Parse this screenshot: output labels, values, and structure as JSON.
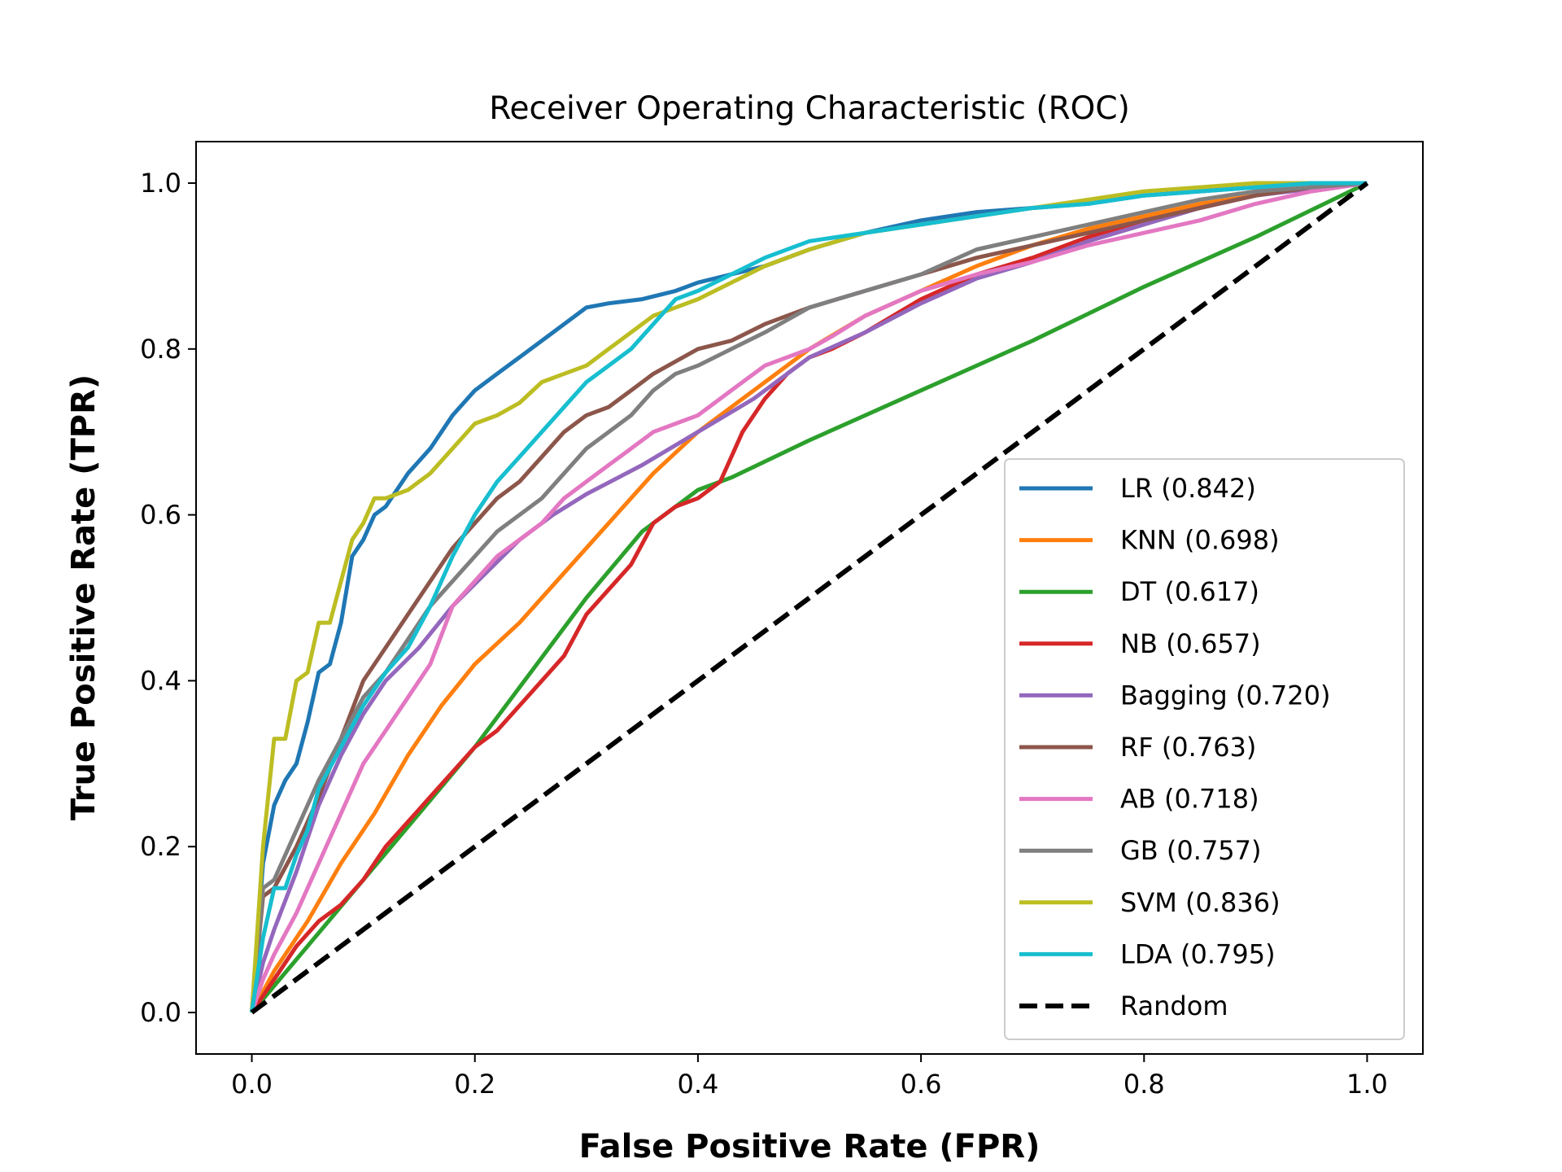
{
  "chart_data": {
    "type": "line",
    "title": "Receiver Operating Characteristic (ROC)",
    "xlabel": "False Positive Rate (FPR)",
    "ylabel": "True Positive Rate (TPR)",
    "xlim": [
      -0.05,
      1.05
    ],
    "ylim": [
      -0.05,
      1.05
    ],
    "xticks": [
      "0.0",
      "0.2",
      "0.4",
      "0.6",
      "0.8",
      "1.0"
    ],
    "yticks": [
      "0.0",
      "0.2",
      "0.4",
      "0.6",
      "0.8",
      "1.0"
    ],
    "grid": false,
    "legend_position": "lower-right",
    "series": [
      {
        "name": "LR (0.842)",
        "color": "#1f77b4",
        "x": [
          0,
          0.01,
          0.02,
          0.03,
          0.04,
          0.05,
          0.06,
          0.07,
          0.08,
          0.09,
          0.1,
          0.11,
          0.12,
          0.14,
          0.16,
          0.18,
          0.2,
          0.22,
          0.24,
          0.26,
          0.28,
          0.3,
          0.32,
          0.35,
          0.38,
          0.4,
          0.43,
          0.46,
          0.5,
          0.55,
          0.6,
          0.65,
          0.7,
          0.75,
          0.8,
          0.85,
          0.9,
          0.95,
          1.0
        ],
        "y": [
          0,
          0.18,
          0.25,
          0.28,
          0.3,
          0.35,
          0.41,
          0.42,
          0.47,
          0.55,
          0.57,
          0.6,
          0.61,
          0.65,
          0.68,
          0.72,
          0.75,
          0.77,
          0.79,
          0.81,
          0.83,
          0.85,
          0.855,
          0.86,
          0.87,
          0.88,
          0.89,
          0.9,
          0.92,
          0.94,
          0.955,
          0.965,
          0.97,
          0.975,
          0.985,
          0.99,
          0.995,
          1.0,
          1.0
        ]
      },
      {
        "name": "KNN (0.698)",
        "color": "#ff7f0e",
        "x": [
          0,
          0.02,
          0.05,
          0.08,
          0.11,
          0.14,
          0.17,
          0.2,
          0.24,
          0.28,
          0.32,
          0.36,
          0.4,
          0.45,
          0.5,
          0.55,
          0.6,
          0.65,
          0.7,
          0.75,
          0.8,
          0.85,
          0.9,
          0.95,
          1.0
        ],
        "y": [
          0,
          0.05,
          0.11,
          0.18,
          0.24,
          0.31,
          0.37,
          0.42,
          0.47,
          0.53,
          0.59,
          0.65,
          0.7,
          0.75,
          0.8,
          0.84,
          0.87,
          0.9,
          0.925,
          0.945,
          0.96,
          0.975,
          0.985,
          0.995,
          1.0
        ]
      },
      {
        "name": "DT (0.617)",
        "color": "#2ca02c",
        "x": [
          0,
          0.05,
          0.1,
          0.15,
          0.2,
          0.25,
          0.3,
          0.35,
          0.4,
          0.43,
          0.5,
          0.6,
          0.7,
          0.8,
          0.9,
          1.0
        ],
        "y": [
          0,
          0.08,
          0.16,
          0.24,
          0.32,
          0.41,
          0.5,
          0.58,
          0.63,
          0.645,
          0.69,
          0.75,
          0.81,
          0.875,
          0.935,
          1.0
        ]
      },
      {
        "name": "NB (0.657)",
        "color": "#d62728",
        "x": [
          0,
          0.02,
          0.04,
          0.06,
          0.08,
          0.1,
          0.12,
          0.14,
          0.16,
          0.18,
          0.2,
          0.22,
          0.24,
          0.26,
          0.28,
          0.3,
          0.32,
          0.34,
          0.36,
          0.38,
          0.4,
          0.42,
          0.44,
          0.46,
          0.48,
          0.5,
          0.52,
          0.55,
          0.6,
          0.65,
          0.7,
          0.75,
          0.8,
          0.85,
          0.9,
          0.95,
          1.0
        ],
        "y": [
          0,
          0.04,
          0.08,
          0.11,
          0.13,
          0.16,
          0.2,
          0.23,
          0.26,
          0.29,
          0.32,
          0.34,
          0.37,
          0.4,
          0.43,
          0.48,
          0.51,
          0.54,
          0.59,
          0.61,
          0.62,
          0.64,
          0.7,
          0.74,
          0.77,
          0.79,
          0.8,
          0.82,
          0.86,
          0.89,
          0.91,
          0.935,
          0.955,
          0.97,
          0.985,
          0.995,
          1.0
        ]
      },
      {
        "name": "Bagging (0.720)",
        "color": "#9467bd",
        "x": [
          0,
          0.01,
          0.02,
          0.04,
          0.06,
          0.08,
          0.1,
          0.12,
          0.15,
          0.18,
          0.21,
          0.24,
          0.27,
          0.3,
          0.35,
          0.4,
          0.45,
          0.5,
          0.55,
          0.6,
          0.65,
          0.7,
          0.75,
          0.8,
          0.85,
          0.9,
          0.95,
          1.0
        ],
        "y": [
          0,
          0.06,
          0.1,
          0.17,
          0.25,
          0.31,
          0.36,
          0.4,
          0.44,
          0.49,
          0.53,
          0.57,
          0.6,
          0.625,
          0.66,
          0.7,
          0.74,
          0.79,
          0.82,
          0.855,
          0.885,
          0.905,
          0.93,
          0.95,
          0.97,
          0.985,
          0.993,
          1.0
        ]
      },
      {
        "name": "RF (0.763)",
        "color": "#8c564b",
        "x": [
          0,
          0.01,
          0.02,
          0.04,
          0.06,
          0.08,
          0.1,
          0.12,
          0.14,
          0.16,
          0.18,
          0.2,
          0.22,
          0.24,
          0.26,
          0.28,
          0.3,
          0.32,
          0.34,
          0.36,
          0.38,
          0.4,
          0.43,
          0.46,
          0.5,
          0.55,
          0.6,
          0.65,
          0.7,
          0.75,
          0.8,
          0.85,
          0.9,
          0.95,
          1.0
        ],
        "y": [
          0,
          0.14,
          0.15,
          0.2,
          0.26,
          0.33,
          0.4,
          0.44,
          0.48,
          0.52,
          0.56,
          0.59,
          0.62,
          0.64,
          0.67,
          0.7,
          0.72,
          0.73,
          0.75,
          0.77,
          0.785,
          0.8,
          0.81,
          0.83,
          0.85,
          0.87,
          0.89,
          0.91,
          0.925,
          0.94,
          0.955,
          0.97,
          0.985,
          0.995,
          1.0
        ]
      },
      {
        "name": "AB (0.718)",
        "color": "#e377c2",
        "x": [
          0,
          0.01,
          0.02,
          0.04,
          0.06,
          0.08,
          0.1,
          0.12,
          0.14,
          0.16,
          0.18,
          0.2,
          0.22,
          0.24,
          0.26,
          0.28,
          0.3,
          0.32,
          0.34,
          0.36,
          0.38,
          0.4,
          0.42,
          0.44,
          0.46,
          0.48,
          0.5,
          0.52,
          0.55,
          0.6,
          0.65,
          0.7,
          0.75,
          0.8,
          0.85,
          0.9,
          0.95,
          1.0
        ],
        "y": [
          0,
          0.04,
          0.07,
          0.12,
          0.18,
          0.24,
          0.3,
          0.34,
          0.38,
          0.42,
          0.49,
          0.52,
          0.55,
          0.57,
          0.59,
          0.62,
          0.64,
          0.66,
          0.68,
          0.7,
          0.71,
          0.72,
          0.74,
          0.76,
          0.78,
          0.79,
          0.8,
          0.815,
          0.84,
          0.87,
          0.89,
          0.905,
          0.925,
          0.94,
          0.955,
          0.975,
          0.99,
          1.0
        ]
      },
      {
        "name": "GB (0.757)",
        "color": "#7f7f7f",
        "x": [
          0,
          0.01,
          0.02,
          0.04,
          0.06,
          0.08,
          0.1,
          0.12,
          0.14,
          0.16,
          0.18,
          0.2,
          0.22,
          0.24,
          0.26,
          0.28,
          0.3,
          0.32,
          0.34,
          0.36,
          0.38,
          0.4,
          0.43,
          0.46,
          0.5,
          0.55,
          0.6,
          0.65,
          0.7,
          0.75,
          0.8,
          0.85,
          0.9,
          0.95,
          1.0
        ],
        "y": [
          0,
          0.15,
          0.16,
          0.22,
          0.28,
          0.33,
          0.38,
          0.41,
          0.45,
          0.49,
          0.52,
          0.55,
          0.58,
          0.6,
          0.62,
          0.65,
          0.68,
          0.7,
          0.72,
          0.75,
          0.77,
          0.78,
          0.8,
          0.82,
          0.85,
          0.87,
          0.89,
          0.92,
          0.935,
          0.95,
          0.965,
          0.98,
          0.99,
          0.995,
          1.0
        ]
      },
      {
        "name": "SVM (0.836)",
        "color": "#bcbd22",
        "x": [
          0,
          0.01,
          0.02,
          0.03,
          0.04,
          0.05,
          0.06,
          0.07,
          0.08,
          0.09,
          0.1,
          0.11,
          0.12,
          0.14,
          0.16,
          0.18,
          0.2,
          0.22,
          0.24,
          0.26,
          0.28,
          0.3,
          0.32,
          0.34,
          0.36,
          0.38,
          0.4,
          0.43,
          0.46,
          0.5,
          0.55,
          0.6,
          0.65,
          0.7,
          0.75,
          0.8,
          0.85,
          0.9,
          0.95,
          1.0
        ],
        "y": [
          0,
          0.2,
          0.33,
          0.33,
          0.4,
          0.41,
          0.47,
          0.47,
          0.52,
          0.57,
          0.59,
          0.62,
          0.62,
          0.63,
          0.65,
          0.68,
          0.71,
          0.72,
          0.735,
          0.76,
          0.77,
          0.78,
          0.8,
          0.82,
          0.84,
          0.85,
          0.86,
          0.88,
          0.9,
          0.92,
          0.94,
          0.95,
          0.96,
          0.97,
          0.98,
          0.99,
          0.995,
          1.0,
          1.0,
          1.0
        ]
      },
      {
        "name": "LDA (0.795)",
        "color": "#17becf",
        "x": [
          0,
          0.01,
          0.02,
          0.03,
          0.04,
          0.05,
          0.06,
          0.08,
          0.1,
          0.12,
          0.14,
          0.16,
          0.18,
          0.2,
          0.22,
          0.24,
          0.26,
          0.28,
          0.3,
          0.32,
          0.34,
          0.36,
          0.38,
          0.4,
          0.43,
          0.46,
          0.5,
          0.55,
          0.6,
          0.65,
          0.7,
          0.75,
          0.8,
          0.85,
          0.9,
          0.95,
          1.0
        ],
        "y": [
          0,
          0.09,
          0.15,
          0.15,
          0.19,
          0.22,
          0.27,
          0.32,
          0.37,
          0.41,
          0.44,
          0.49,
          0.55,
          0.6,
          0.64,
          0.67,
          0.7,
          0.73,
          0.76,
          0.78,
          0.8,
          0.83,
          0.86,
          0.87,
          0.89,
          0.91,
          0.93,
          0.94,
          0.95,
          0.96,
          0.97,
          0.975,
          0.985,
          0.99,
          0.995,
          1.0,
          1.0
        ]
      },
      {
        "name": "Random",
        "color": "#000000",
        "dashed": true,
        "x": [
          0,
          1.0
        ],
        "y": [
          0,
          1.0
        ]
      }
    ]
  }
}
